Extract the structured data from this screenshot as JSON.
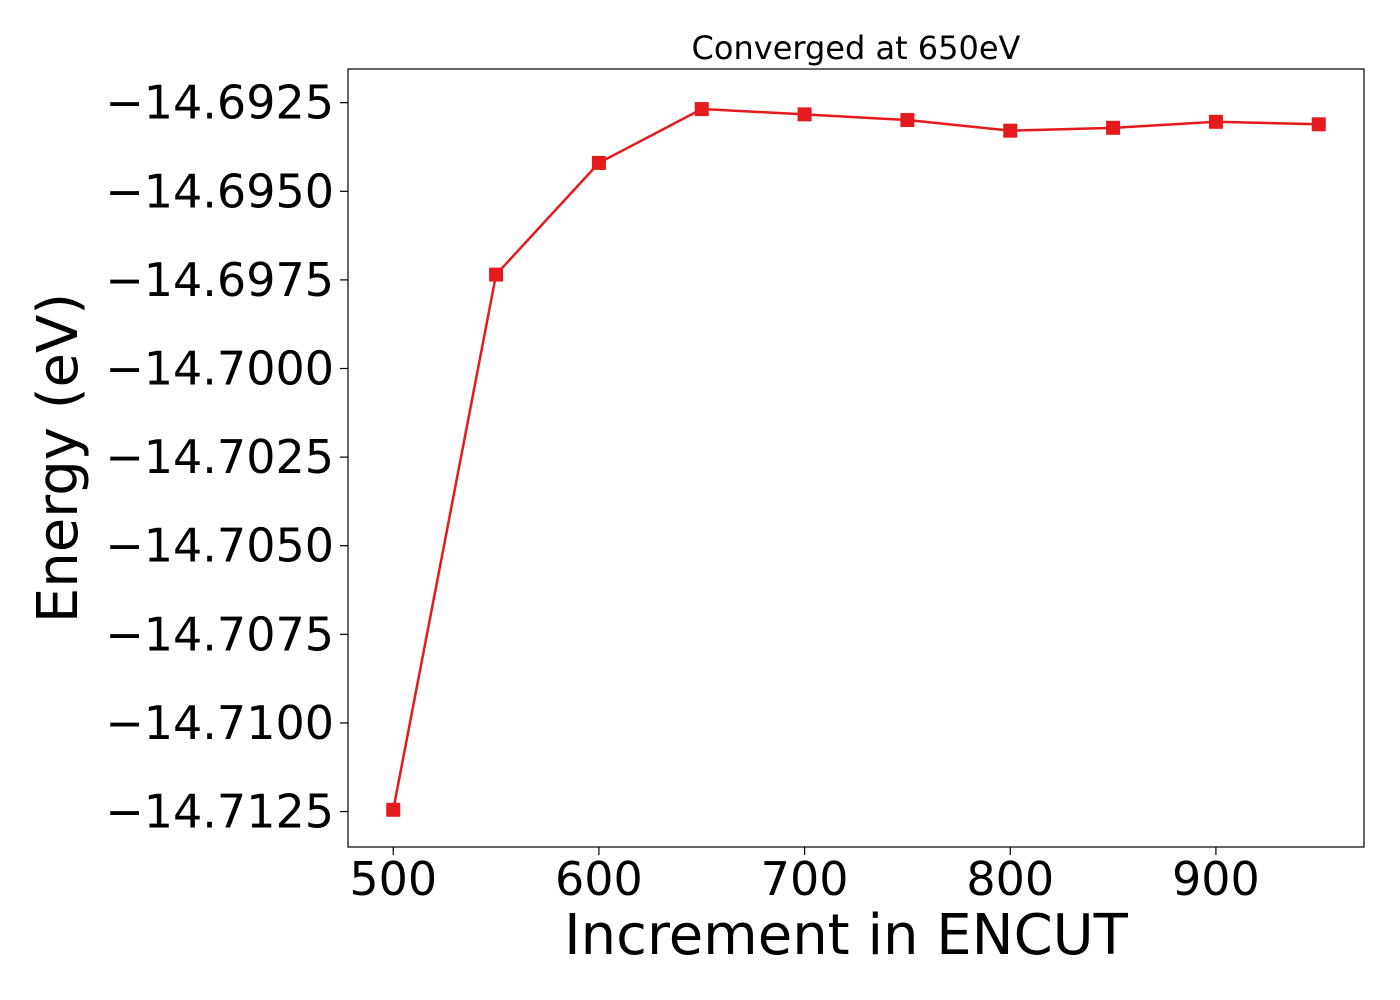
{
  "chart_data": {
    "type": "line",
    "title": "Converged at 650eV",
    "xlabel": "Increment in ENCUT",
    "ylabel": "Energy (eV)",
    "x": [
      500,
      550,
      600,
      650,
      700,
      750,
      800,
      850,
      900,
      950
    ],
    "series": [
      {
        "values": [
          -14.71245,
          -14.69735,
          -14.6942,
          -14.69268,
          -14.69283,
          -14.69299,
          -14.69329,
          -14.69321,
          -14.69304,
          -14.69311
        ],
        "color": "#e41a1c",
        "marker": "square"
      }
    ],
    "xlim": [
      478,
      972
    ],
    "ylim": [
      -14.7135,
      -14.69155
    ],
    "xticks": [
      500,
      600,
      700,
      800,
      900
    ],
    "xtick_labels": [
      "500",
      "600",
      "700",
      "800",
      "900"
    ],
    "yticks": [
      -14.6925,
      -14.695,
      -14.6975,
      -14.7,
      -14.7025,
      -14.705,
      -14.7075,
      -14.71,
      -14.7125
    ],
    "ytick_labels": [
      "−14.6925",
      "−14.6950",
      "−14.6975",
      "−14.7000",
      "−14.7025",
      "−14.7050",
      "−14.7075",
      "−14.7100",
      "−14.7125"
    ],
    "grid": false,
    "legend": "none"
  }
}
